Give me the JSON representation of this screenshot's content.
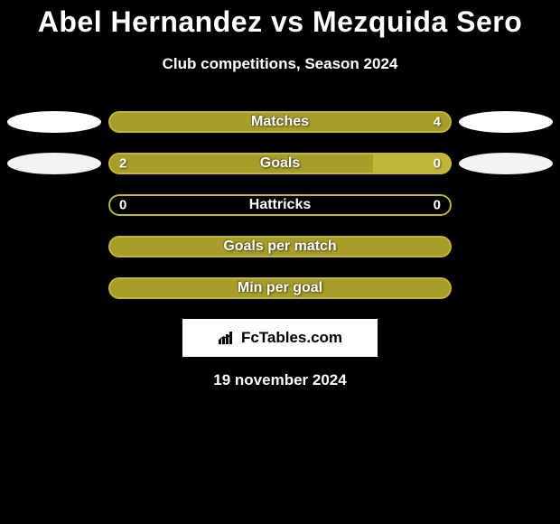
{
  "title": "Abel Hernandez vs Mezquida Sero",
  "subtitle": "Club competitions, Season 2024",
  "date": "19 november 2024",
  "logo": {
    "text": "FcTables.com"
  },
  "colors": {
    "bg": "#000000",
    "title": "#ffffff",
    "olive": "#a79d2a",
    "olive_border": "#c0b737",
    "olive_muted": "#8f8720",
    "white": "#ffffff",
    "offwhite": "#f2f2f2"
  },
  "rows": [
    {
      "id": "matches",
      "label": "Matches",
      "left_val": "",
      "right_val": "4",
      "bar_bg": "#a79d2a",
      "border_color": "#c0b737",
      "seg_right_pct": 0,
      "seg_right_color": "#a79d2a",
      "seg_left_pct": 0,
      "seg_left_color": "#a79d2a",
      "ellipse_left": {
        "show": true,
        "color": "#ffffff"
      },
      "ellipse_right": {
        "show": true,
        "color": "#ffffff"
      }
    },
    {
      "id": "goals",
      "label": "Goals",
      "left_val": "2",
      "right_val": "0",
      "bar_bg": "#8f8720",
      "border_color": "#c0b737",
      "seg_left_pct": 77,
      "seg_left_color": "#a79d2a",
      "seg_right_pct": 23,
      "seg_right_color": "#c0b737",
      "ellipse_left": {
        "show": true,
        "color": "#f2f2f2"
      },
      "ellipse_right": {
        "show": true,
        "color": "#f2f2f2"
      }
    },
    {
      "id": "hattricks",
      "label": "Hattricks",
      "left_val": "0",
      "right_val": "0",
      "bar_bg": "#000000",
      "border_color": "#c0b737",
      "seg_left_pct": 0,
      "seg_left_color": "#a79d2a",
      "seg_right_pct": 0,
      "seg_right_color": "#a79d2a",
      "ellipse_left": {
        "show": false,
        "color": ""
      },
      "ellipse_right": {
        "show": false,
        "color": ""
      }
    },
    {
      "id": "goals-per-match",
      "label": "Goals per match",
      "left_val": "",
      "right_val": "",
      "bar_bg": "#a79d2a",
      "border_color": "#c0b737",
      "seg_left_pct": 0,
      "seg_left_color": "#a79d2a",
      "seg_right_pct": 0,
      "seg_right_color": "#a79d2a",
      "ellipse_left": {
        "show": false,
        "color": ""
      },
      "ellipse_right": {
        "show": false,
        "color": ""
      }
    },
    {
      "id": "min-per-goal",
      "label": "Min per goal",
      "left_val": "",
      "right_val": "",
      "bar_bg": "#a79d2a",
      "border_color": "#c0b737",
      "seg_left_pct": 0,
      "seg_left_color": "#a79d2a",
      "seg_right_pct": 0,
      "seg_right_color": "#a79d2a",
      "ellipse_left": {
        "show": false,
        "color": ""
      },
      "ellipse_right": {
        "show": false,
        "color": ""
      }
    }
  ]
}
